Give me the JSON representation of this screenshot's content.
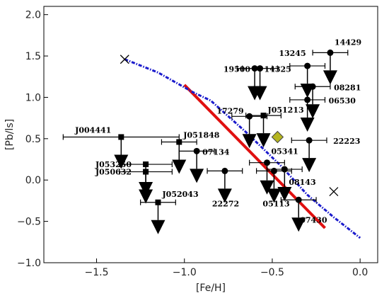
{
  "chart_data": {
    "type": "scatter",
    "xlabel": "[Fe/H]",
    "ylabel": "[Pb/ls]",
    "xlim": [
      -1.8,
      0.1
    ],
    "ylim": [
      -1.0,
      2.1
    ],
    "xticks": [
      -1.5,
      -1.0,
      -0.5,
      0.0
    ],
    "yticks": [
      -1.0,
      -0.5,
      0.0,
      0.5,
      1.0,
      1.5,
      2.0
    ],
    "xtick_labels": [
      "−1.5",
      "−1.0",
      "−0.5",
      "0.0"
    ],
    "ytick_labels": [
      "−1.0",
      "−0.5",
      "0.0",
      "0.5",
      "1.0",
      "1.5",
      "2.0"
    ],
    "grid": false,
    "upper_limits": [
      {
        "label": "14429",
        "x": -0.17,
        "y": 1.54,
        "xerr": 0.1,
        "marker": "circle"
      },
      {
        "label": "13245",
        "x": -0.3,
        "y": 1.38,
        "xerr": 0.1,
        "marker": "circle"
      },
      {
        "label": "19500",
        "x": -0.6,
        "y": 1.35,
        "xerr": 0.1,
        "marker": "circle"
      },
      {
        "label": "14325",
        "x": -0.57,
        "y": 1.35,
        "xerr": 0.1,
        "marker": "circle"
      },
      {
        "label": "08281",
        "x": -0.27,
        "y": 1.13,
        "xerr": 0.1,
        "marker": "circle"
      },
      {
        "label": "06530",
        "x": -0.3,
        "y": 0.97,
        "xerr": 0.1,
        "marker": "circle"
      },
      {
        "label": "17279",
        "x": -0.63,
        "y": 0.77,
        "xerr": 0.1,
        "marker": "circle"
      },
      {
        "label": "J051213",
        "x": -0.55,
        "y": 0.78,
        "xerr": 0.1,
        "marker": "square"
      },
      {
        "label": "22223",
        "x": -0.29,
        "y": 0.48,
        "xerr": 0.1,
        "marker": "circle"
      },
      {
        "label": "J004441",
        "x": -1.36,
        "y": 0.52,
        "xerr": 0.33,
        "marker": "square"
      },
      {
        "label": "J051848",
        "x": -1.03,
        "y": 0.46,
        "xerr": 0.1,
        "marker": "square"
      },
      {
        "label": "07134",
        "x": -0.93,
        "y": 0.35,
        "xerr": 0.1,
        "marker": "circle"
      },
      {
        "label": "J053250",
        "x": -1.22,
        "y": 0.19,
        "xerr": 0.15,
        "marker": "square"
      },
      {
        "label": "J050632",
        "x": -1.22,
        "y": 0.1,
        "xerr": 0.15,
        "marker": "square"
      },
      {
        "label": "05341",
        "x": -0.53,
        "y": 0.21,
        "xerr": 0.1,
        "marker": "circle"
      },
      {
        "label": "08143",
        "x": -0.43,
        "y": 0.13,
        "xerr": 0.1,
        "marker": "circle"
      },
      {
        "label": "22272",
        "x": -0.77,
        "y": 0.11,
        "xerr": 0.1,
        "marker": "circle"
      },
      {
        "label": "05113",
        "x": -0.49,
        "y": 0.11,
        "xerr": 0.1,
        "marker": "circle"
      },
      {
        "label": "J052043",
        "x": -1.15,
        "y": -0.27,
        "xerr": 0.1,
        "marker": "square"
      },
      {
        "label": "07430",
        "x": -0.35,
        "y": -0.24,
        "xerr": 0.1,
        "marker": "circle"
      }
    ],
    "lone_points": [
      {
        "x": -0.47,
        "y": 0.52,
        "marker": "diamond",
        "color": "#b5b520"
      },
      {
        "x": -1.34,
        "y": 1.46,
        "marker": "x"
      },
      {
        "x": -0.15,
        "y": -0.14,
        "marker": "x"
      }
    ],
    "lines": [
      {
        "style": "solid",
        "color": "#e01010",
        "points": [
          [
            -1.0,
            1.15
          ],
          [
            -0.2,
            -0.58
          ]
        ]
      },
      {
        "style": "dash-dot",
        "color": "#1a1acc",
        "points": [
          [
            -1.34,
            1.46
          ],
          [
            -1.15,
            1.3
          ],
          [
            -0.95,
            1.06
          ],
          [
            -0.85,
            0.96
          ],
          [
            -0.65,
            0.58
          ],
          [
            -0.45,
            0.17
          ],
          [
            -0.3,
            -0.18
          ],
          [
            -0.15,
            -0.45
          ],
          [
            0.0,
            -0.7
          ]
        ]
      }
    ]
  }
}
